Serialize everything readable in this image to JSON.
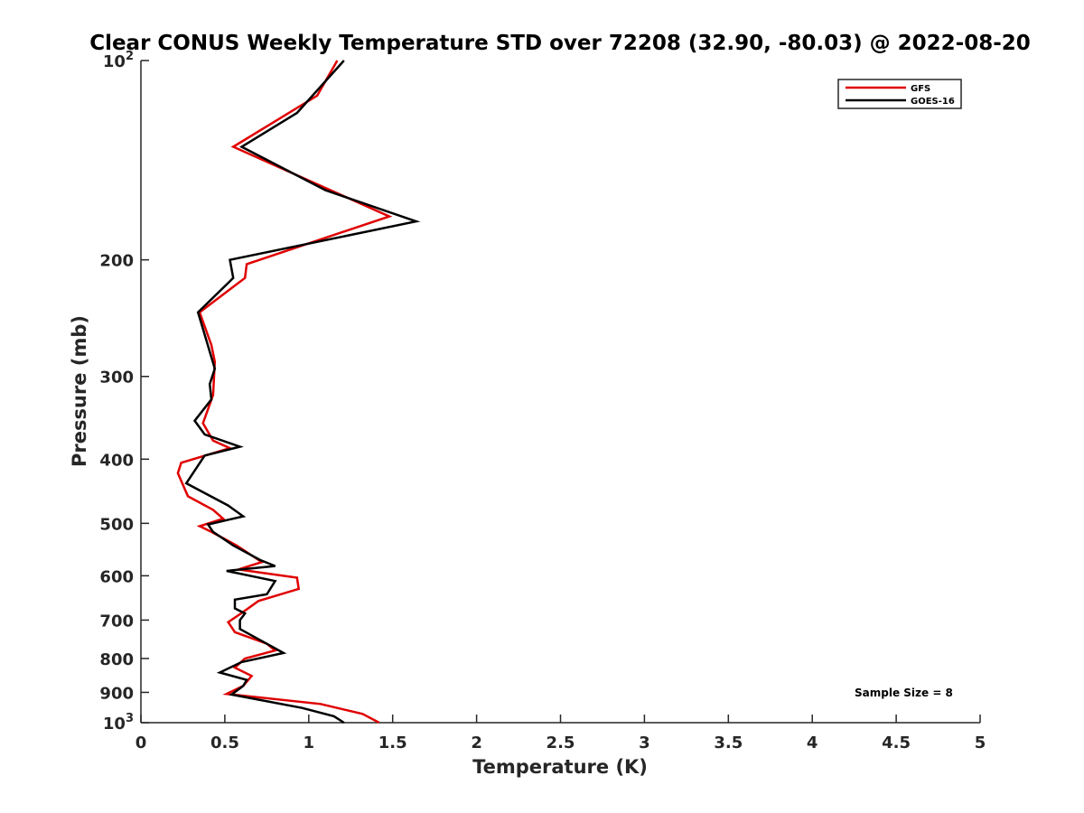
{
  "chart_data": {
    "type": "line",
    "title": "Clear CONUS Weekly Temperature STD over 72208 (32.90, -80.03) @ 2022-08-20",
    "xlabel": "Temperature (K)",
    "ylabel": "Pressure (mb)",
    "xlim": [
      0,
      5
    ],
    "ylim": [
      100,
      1000
    ],
    "y_scale": "log",
    "y_reversed": true,
    "x_ticks": [
      "0",
      "0.5",
      "1",
      "1.5",
      "2",
      "2.5",
      "3",
      "3.5",
      "4",
      "4.5",
      "5"
    ],
    "y_ticks": [
      {
        "value": 100,
        "base": "10",
        "exp": "2"
      },
      {
        "value": 200,
        "label": "200"
      },
      {
        "value": 300,
        "label": "300"
      },
      {
        "value": 400,
        "label": "400"
      },
      {
        "value": 500,
        "label": "500"
      },
      {
        "value": 600,
        "label": "600"
      },
      {
        "value": 700,
        "label": "700"
      },
      {
        "value": 800,
        "label": "800"
      },
      {
        "value": 900,
        "label": "900"
      },
      {
        "value": 1000,
        "base": "10",
        "exp": "3"
      }
    ],
    "grid": false,
    "legend_position": "top-right",
    "annotation": "Sample Size = 8",
    "series": [
      {
        "name": "GFS",
        "color": "#e00000",
        "points": [
          [
            1.17,
            100
          ],
          [
            1.05,
            113
          ],
          [
            0.55,
            135
          ],
          [
            1.48,
            172
          ],
          [
            0.63,
            203
          ],
          [
            0.62,
            213
          ],
          [
            0.35,
            240
          ],
          [
            0.42,
            269
          ],
          [
            0.44,
            285
          ],
          [
            0.43,
            320
          ],
          [
            0.37,
            353
          ],
          [
            0.43,
            375
          ],
          [
            0.53,
            385
          ],
          [
            0.24,
            405
          ],
          [
            0.22,
            420
          ],
          [
            0.28,
            455
          ],
          [
            0.43,
            477
          ],
          [
            0.49,
            492
          ],
          [
            0.35,
            505
          ],
          [
            0.42,
            515
          ],
          [
            0.57,
            540
          ],
          [
            0.72,
            572
          ],
          [
            0.58,
            587
          ],
          [
            0.93,
            604
          ],
          [
            0.94,
            628
          ],
          [
            0.7,
            655
          ],
          [
            0.6,
            683
          ],
          [
            0.52,
            705
          ],
          [
            0.56,
            730
          ],
          [
            0.75,
            760
          ],
          [
            0.8,
            778
          ],
          [
            0.62,
            800
          ],
          [
            0.56,
            826
          ],
          [
            0.66,
            850
          ],
          [
            0.61,
            880
          ],
          [
            0.51,
            905
          ],
          [
            1.07,
            937
          ],
          [
            1.32,
            970
          ],
          [
            1.42,
            1000
          ]
        ]
      },
      {
        "name": "GOES-16",
        "color": "#000000",
        "points": [
          [
            1.21,
            100
          ],
          [
            0.93,
            120
          ],
          [
            0.6,
            135
          ],
          [
            1.1,
            157
          ],
          [
            1.64,
            175
          ],
          [
            0.53,
            200
          ],
          [
            0.55,
            213
          ],
          [
            0.34,
            240
          ],
          [
            0.44,
            292
          ],
          [
            0.41,
            308
          ],
          [
            0.42,
            325
          ],
          [
            0.32,
            350
          ],
          [
            0.38,
            367
          ],
          [
            0.59,
            383
          ],
          [
            0.38,
            395
          ],
          [
            0.27,
            435
          ],
          [
            0.52,
            470
          ],
          [
            0.61,
            488
          ],
          [
            0.4,
            502
          ],
          [
            0.43,
            515
          ],
          [
            0.55,
            540
          ],
          [
            0.71,
            568
          ],
          [
            0.8,
            580
          ],
          [
            0.51,
            590
          ],
          [
            0.8,
            611
          ],
          [
            0.75,
            640
          ],
          [
            0.56,
            652
          ],
          [
            0.56,
            672
          ],
          [
            0.62,
            684
          ],
          [
            0.59,
            700
          ],
          [
            0.59,
            722
          ],
          [
            0.77,
            765
          ],
          [
            0.85,
            785
          ],
          [
            0.6,
            810
          ],
          [
            0.47,
            840
          ],
          [
            0.63,
            862
          ],
          [
            0.61,
            880
          ],
          [
            0.54,
            907
          ],
          [
            0.96,
            950
          ],
          [
            1.15,
            978
          ],
          [
            1.21,
            1000
          ]
        ]
      }
    ]
  }
}
